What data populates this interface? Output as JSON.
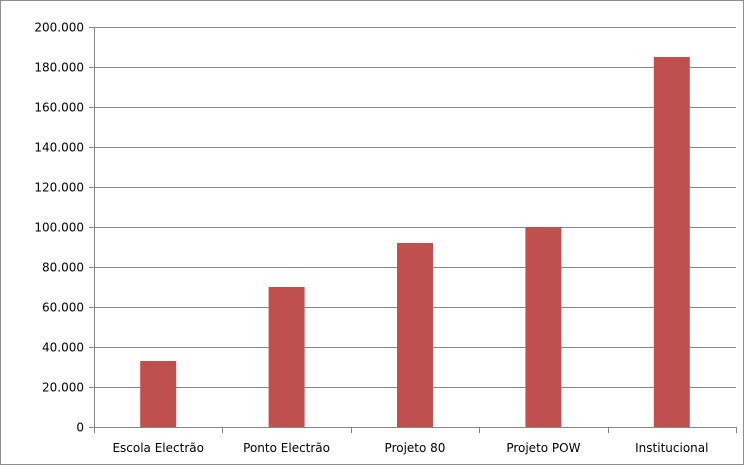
{
  "chart_data": {
    "type": "bar",
    "title": "",
    "xlabel": "",
    "ylabel": "",
    "categories": [
      "Escola Electrão",
      "Ponto Electrão",
      "Projeto 80",
      "Projeto POW",
      "Institucional"
    ],
    "values": [
      33000,
      70000,
      92000,
      100000,
      185000
    ],
    "ylim": [
      0,
      200000
    ],
    "ytick_values": [
      0,
      20000,
      40000,
      60000,
      80000,
      100000,
      120000,
      140000,
      160000,
      180000,
      200000
    ],
    "ytick_labels": [
      "0",
      "20.000",
      "40.000",
      "60.000",
      "80.000",
      "100.000",
      "120.000",
      "140.000",
      "160.000",
      "180.000",
      "200.000"
    ],
    "grid": true,
    "legend": "none",
    "bar_color": "#c0504d",
    "grid_color": "#868686",
    "axis_color": "#868686"
  }
}
